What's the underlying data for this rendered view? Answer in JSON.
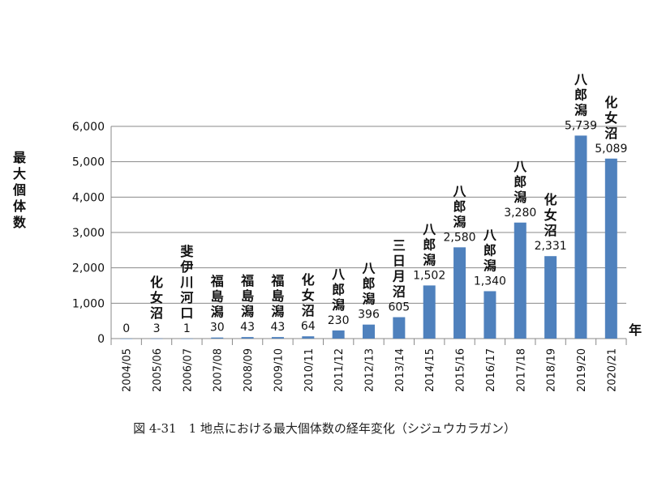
{
  "caption": "図 4-31　1 地点における最大個体数の経年変化（シジュウカラガン）",
  "chart_data": {
    "type": "bar",
    "categories": [
      "2004/05",
      "2005/06",
      "2006/07",
      "2007/08",
      "2008/09",
      "2009/10",
      "2010/11",
      "2011/12",
      "2012/13",
      "2013/14",
      "2014/15",
      "2015/16",
      "2016/17",
      "2017/18",
      "2018/19",
      "2019/20",
      "2020/21"
    ],
    "values": [
      0,
      3,
      1,
      30,
      43,
      43,
      64,
      230,
      396,
      605,
      1502,
      2580,
      1340,
      3280,
      2331,
      5739,
      5089
    ],
    "value_labels": [
      "0",
      "3",
      "1",
      "30",
      "43",
      "43",
      "64",
      "230",
      "396",
      "605",
      "1,502",
      "2,580",
      "1,340",
      "3,280",
      "2,331",
      "5,739",
      "5,089"
    ],
    "location_labels": [
      "",
      "化女沼",
      "斐伊川河口",
      "福島潟",
      "福島潟",
      "福島潟",
      "化女沼",
      "八郎潟",
      "八郎潟",
      "三日月沼",
      "八郎潟",
      "八郎潟",
      "八郎潟",
      "八郎潟",
      "化女沼",
      "八郎潟",
      "化女沼"
    ],
    "ylabel": "最大個体数",
    "xlabel": "年",
    "ylim": [
      0,
      6000
    ],
    "yticks": [
      0,
      1000,
      2000,
      3000,
      4000,
      5000,
      6000
    ],
    "ytick_labels": [
      "0",
      "1,000",
      "2,000",
      "3,000",
      "4,000",
      "5,000",
      "6,000"
    ],
    "grid": true,
    "bar_color": "#4f81bd"
  }
}
